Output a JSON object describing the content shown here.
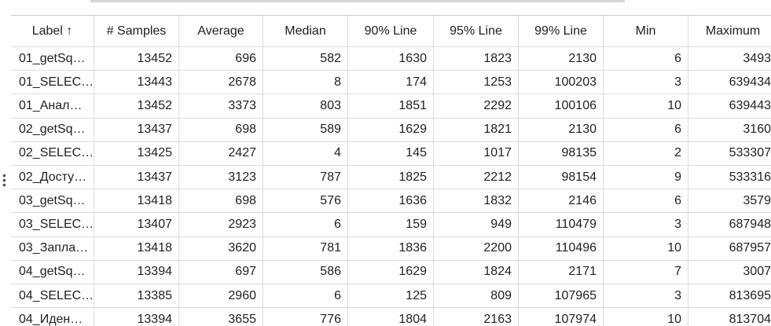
{
  "table": {
    "header": [
      "Label ↑",
      "# Samples",
      "Average",
      "Median",
      "90% Line",
      "95% Line",
      "99% Line",
      "Min",
      "Maximum"
    ],
    "rows": [
      [
        "01_getSq…",
        13452,
        696,
        582,
        1630,
        1823,
        2130,
        6,
        3493
      ],
      [
        "01_SELEC…",
        13443,
        2678,
        8,
        174,
        1253,
        100203,
        3,
        639434
      ],
      [
        "01_Анал…",
        13452,
        3373,
        803,
        1851,
        2292,
        100106,
        10,
        639443
      ],
      [
        "02_getSq…",
        13437,
        698,
        589,
        1629,
        1821,
        2130,
        6,
        3160
      ],
      [
        "02_SELEC…",
        13425,
        2427,
        4,
        145,
        1017,
        98135,
        2,
        533307
      ],
      [
        "02_Досту…",
        13437,
        3123,
        787,
        1825,
        2212,
        98154,
        9,
        533316
      ],
      [
        "03_getSq…",
        13418,
        698,
        576,
        1636,
        1832,
        2146,
        6,
        3579
      ],
      [
        "03_SELEC…",
        13407,
        2923,
        6,
        159,
        949,
        110479,
        3,
        687948
      ],
      [
        "03_Запла…",
        13418,
        3620,
        781,
        1836,
        2200,
        110496,
        10,
        687957
      ],
      [
        "04_getSq…",
        13394,
        697,
        586,
        1629,
        1824,
        2171,
        7,
        3007
      ],
      [
        "04_SELEC…",
        13385,
        2960,
        6,
        125,
        809,
        107965,
        3,
        813695
      ],
      [
        "04_Иден…",
        13394,
        3655,
        776,
        1804,
        2163,
        107974,
        10,
        813704
      ]
    ]
  }
}
